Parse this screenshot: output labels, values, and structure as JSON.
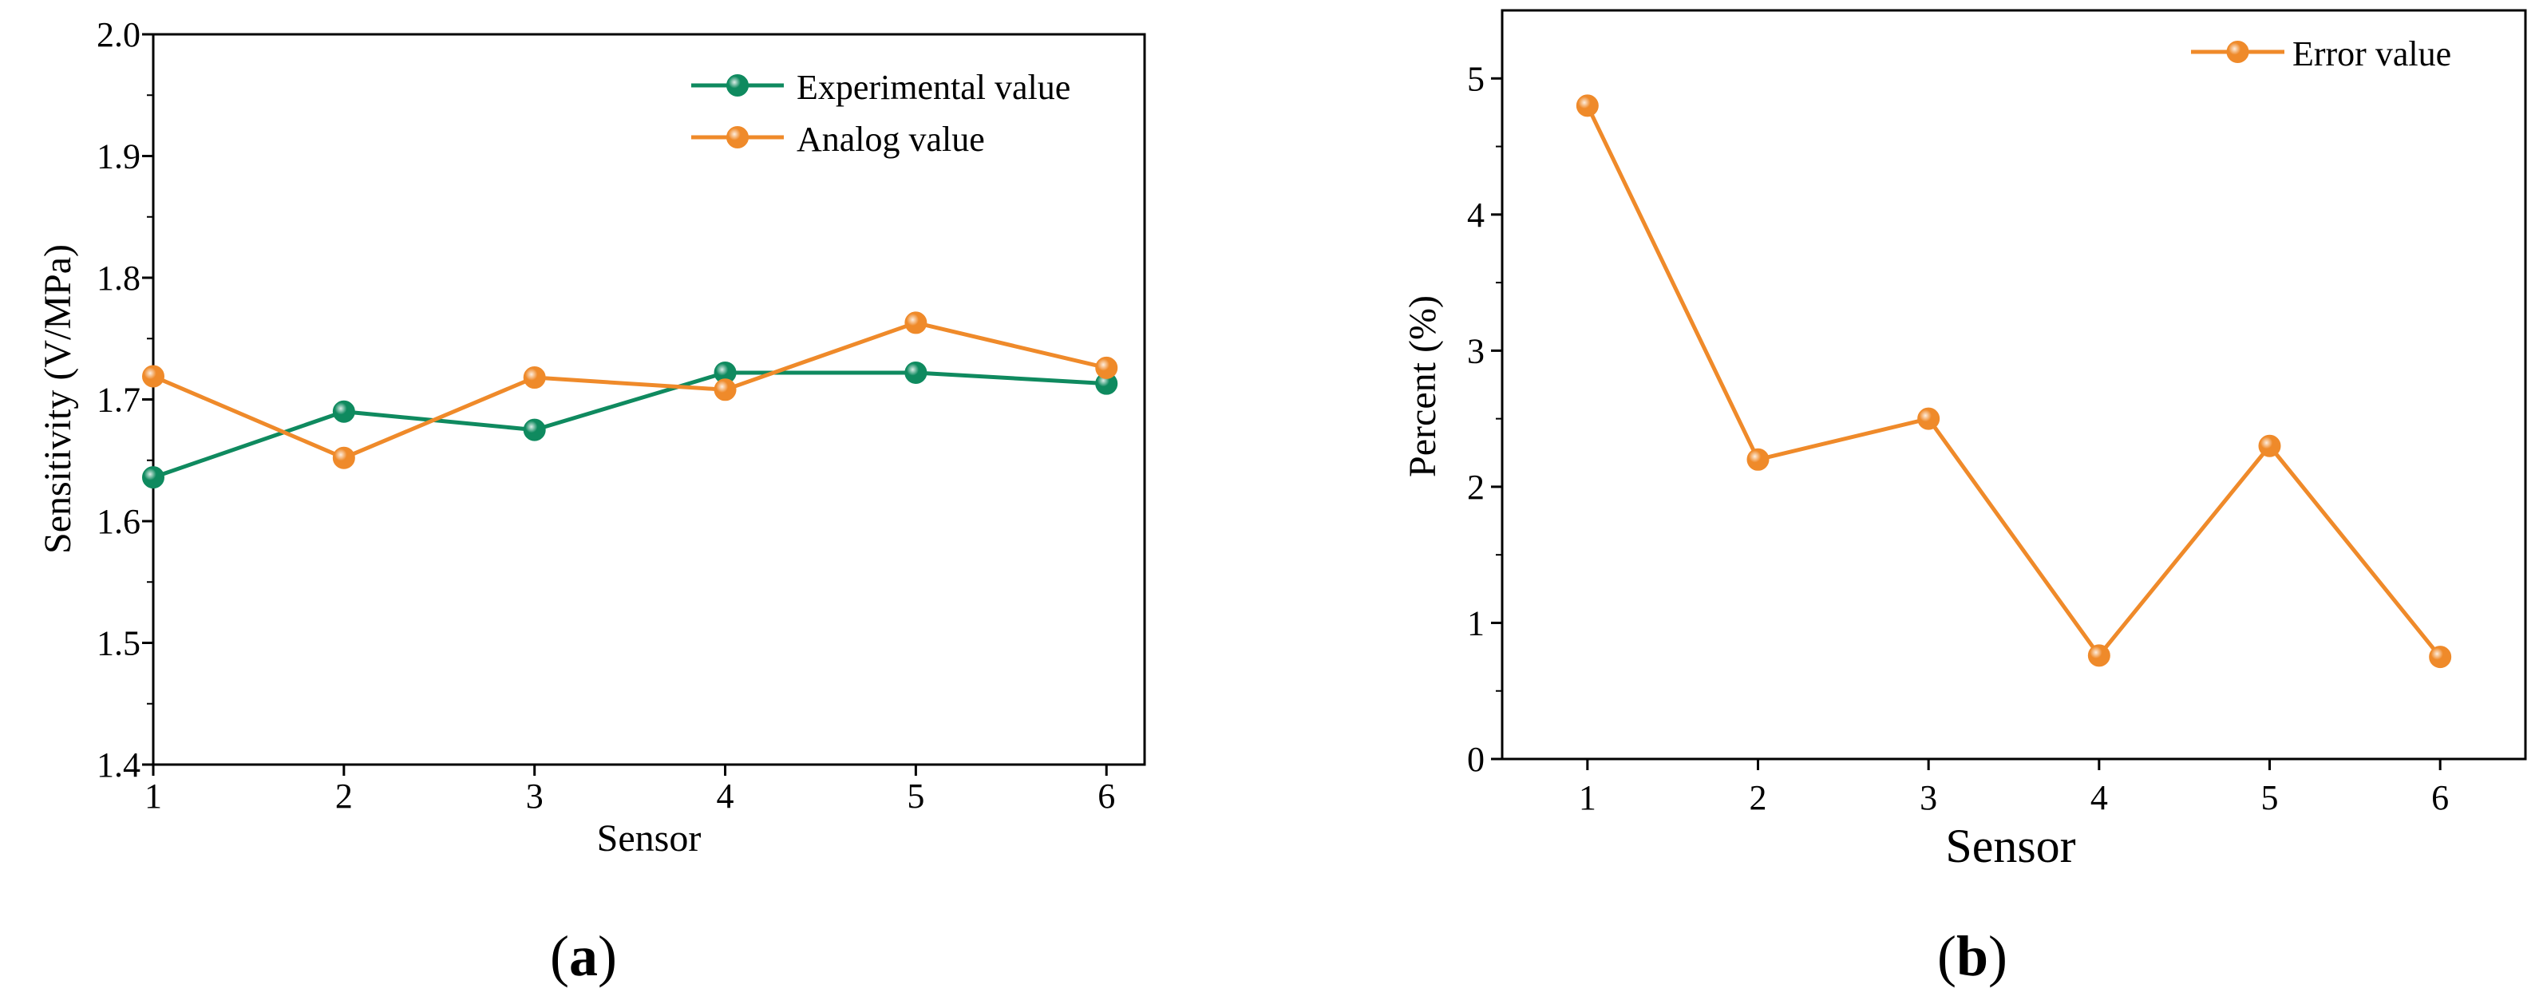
{
  "colors": {
    "experimental": "#0f8a5f",
    "analog": "#ef8a2a",
    "error": "#ef8a2a",
    "axis": "#000000"
  },
  "captions": {
    "a_open": "(",
    "a_letter": "a",
    "a_close": ")",
    "b_open": "(",
    "b_letter": "b",
    "b_close": ")"
  },
  "chart_data": [
    {
      "id": "a",
      "type": "line",
      "xlabel": "Sensor",
      "ylabel": "Sensitivity (V/MPa)",
      "x": [
        1,
        2,
        3,
        4,
        5,
        6
      ],
      "xlim": [
        1,
        6.2
      ],
      "ylim": [
        1.4,
        2.0
      ],
      "xticks": [
        "1",
        "2",
        "3",
        "4",
        "5",
        "6"
      ],
      "yticks": [
        "1.4",
        "1.5",
        "1.6",
        "1.7",
        "1.8",
        "1.9",
        "2.0"
      ],
      "legend_position": "top-right",
      "series": [
        {
          "name": "Experimental value",
          "color_key": "experimental",
          "values": [
            1.636,
            1.69,
            1.675,
            1.722,
            1.722,
            1.713
          ]
        },
        {
          "name": "Analog value",
          "color_key": "analog",
          "values": [
            1.719,
            1.652,
            1.718,
            1.708,
            1.763,
            1.726
          ]
        }
      ]
    },
    {
      "id": "b",
      "type": "line",
      "xlabel": "Sensor",
      "ylabel": "Percent (%)",
      "x": [
        1,
        2,
        3,
        4,
        5,
        6
      ],
      "xlim": [
        0.5,
        6.5
      ],
      "ylim": [
        0,
        5.5
      ],
      "xticks": [
        "1",
        "2",
        "3",
        "4",
        "5",
        "6"
      ],
      "yticks": [
        "0",
        "1",
        "2",
        "3",
        "4",
        "5"
      ],
      "legend_position": "top-right",
      "series": [
        {
          "name": "Error value",
          "color_key": "error",
          "values": [
            4.8,
            2.2,
            2.5,
            0.76,
            2.3,
            0.75
          ]
        }
      ]
    }
  ]
}
